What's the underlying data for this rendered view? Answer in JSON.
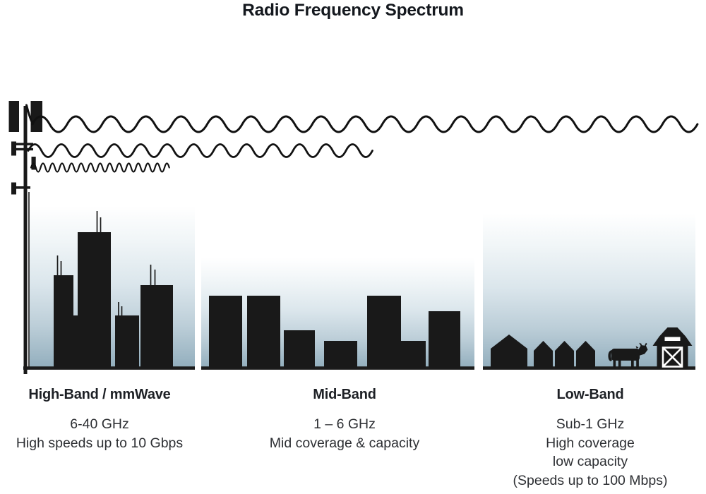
{
  "title": "Radio Frequency Spectrum",
  "bands": [
    {
      "name": "High-Band / mmWave",
      "frequency": "6-40 GHz",
      "details": [
        "High speeds up to 10 Gbps"
      ],
      "scene": "city-skyline-with-rooftop-antennas"
    },
    {
      "name": "Mid-Band",
      "frequency": "1 – 6 GHz",
      "details": [
        "Mid coverage & capacity"
      ],
      "scene": "mid-rise-buildings"
    },
    {
      "name": "Low-Band",
      "frequency": "Sub-1 GHz",
      "details": [
        "High coverage",
        "low capacity",
        "(Speeds up to 100 Mbps)"
      ],
      "scene": "rural-houses-cow-barn"
    }
  ],
  "waves": [
    {
      "band": "High-Band / mmWave",
      "wavelength": "short",
      "reach": "short"
    },
    {
      "band": "Mid-Band",
      "wavelength": "medium",
      "reach": "medium"
    },
    {
      "band": "Low-Band",
      "wavelength": "long",
      "reach": "long"
    }
  ],
  "icons": [
    "cell-tower-icon",
    "cow-icon",
    "barn-icon",
    "house-icon"
  ],
  "colors": {
    "ink": "#191919",
    "wave_ink": "#111111",
    "sky_gradient_bottom": "#92aebd",
    "title_ink": "#14181e",
    "body_text": "#2d2f33"
  }
}
